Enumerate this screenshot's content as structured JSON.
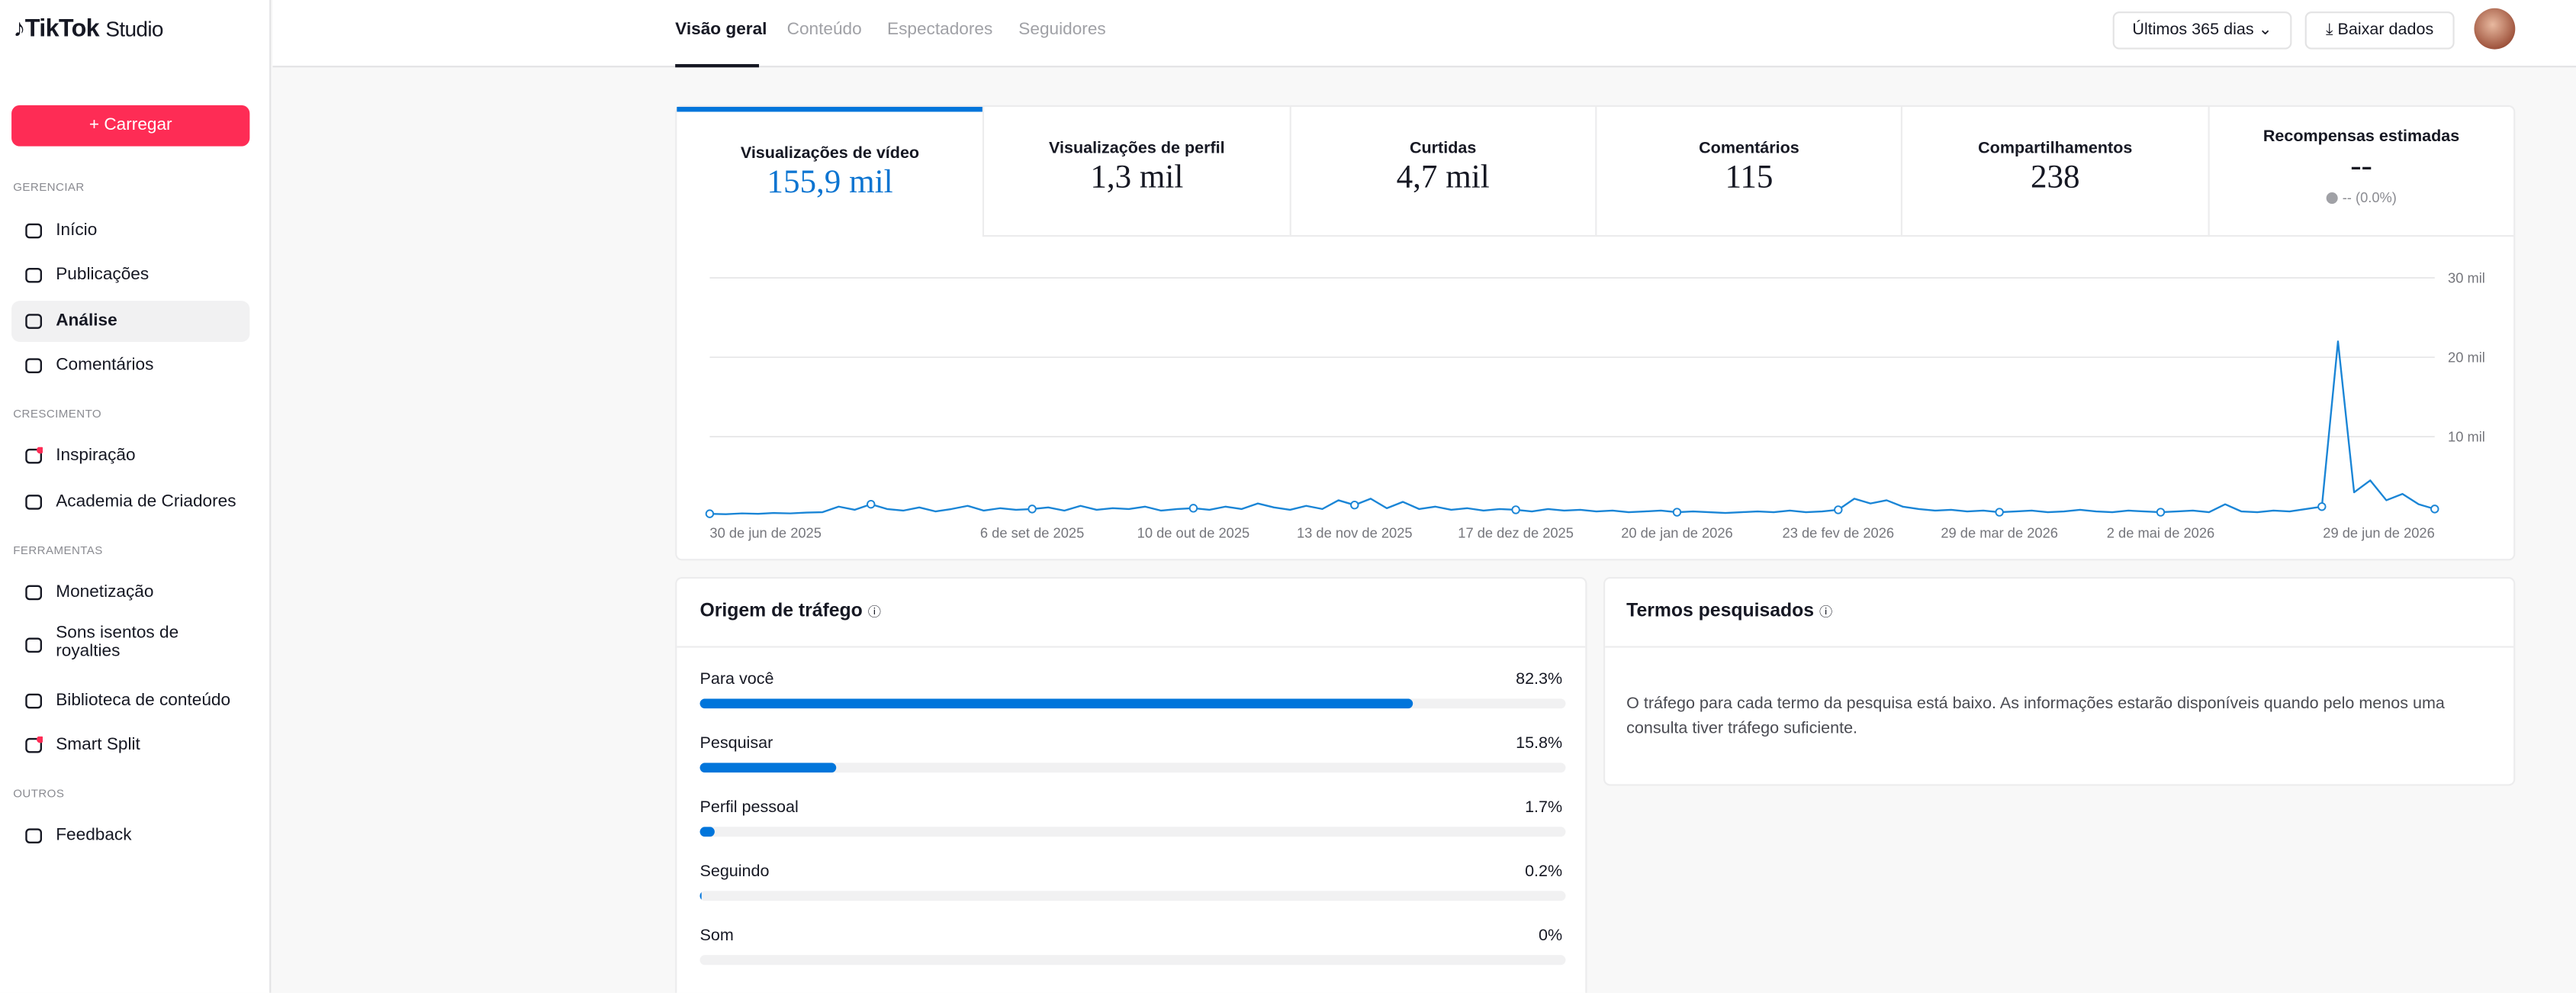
{
  "sidebar": {
    "logo": "TikTok",
    "logo_suffix": "Studio",
    "upload": "Carregar",
    "sections": [
      {
        "title": "GERENCIAR",
        "items": [
          "Início",
          "Publicações",
          "Análise",
          "Comentários"
        ]
      },
      {
        "title": "CRESCIMENTO",
        "items": [
          "Inspiração",
          "Academia de Criadores"
        ]
      },
      {
        "title": "FERRAMENTAS",
        "items": [
          "Monetização",
          "Sons isentos de royalties",
          "Biblioteca de conteúdo",
          "Smart Split"
        ]
      },
      {
        "title": "OUTROS",
        "items": [
          "Feedback"
        ]
      }
    ]
  },
  "tabs": [
    "Visão geral",
    "Conteúdo",
    "Espectadores",
    "Seguidores"
  ],
  "date_range": "Últimos 365 dias",
  "download": "Baixar dados",
  "metrics": [
    {
      "label": "Visualizações de vídeo",
      "value": "155,9 mil"
    },
    {
      "label": "Visualizações de perfil",
      "value": "1,3 mil"
    },
    {
      "label": "Curtidas",
      "value": "4,7 mil"
    },
    {
      "label": "Comentários",
      "value": "115"
    },
    {
      "label": "Compartilhamentos",
      "value": "238"
    },
    {
      "label": "Recompensas estimadas",
      "value": "--",
      "change": "-- (0.0%)"
    }
  ],
  "chart_data": {
    "type": "line",
    "color": "#1a85d6",
    "grid": true,
    "categories": [
      "30 de jun de 2025",
      null,
      null,
      null,
      null,
      null,
      null,
      null,
      null,
      null,
      null,
      null,
      null,
      null,
      null,
      null,
      null,
      null,
      null,
      null,
      "6 de set de 2025",
      null,
      null,
      null,
      null,
      null,
      null,
      null,
      null,
      null,
      "10 de out de 2025",
      null,
      null,
      null,
      null,
      null,
      null,
      null,
      null,
      null,
      "13 de nov de 2025",
      null,
      null,
      null,
      null,
      null,
      null,
      null,
      null,
      null,
      "17 de dez de 2025",
      null,
      null,
      null,
      null,
      null,
      null,
      null,
      null,
      null,
      "20 de jan de 2026",
      null,
      null,
      null,
      null,
      null,
      null,
      null,
      null,
      null,
      "23 de fev de 2026",
      null,
      null,
      null,
      null,
      null,
      null,
      null,
      null,
      null,
      "29 de mar de 2026",
      null,
      null,
      null,
      null,
      null,
      null,
      null,
      null,
      null,
      "2 de mai de 2026",
      null,
      null,
      null,
      null,
      null,
      null,
      null,
      null,
      null,
      null,
      null,
      null,
      null,
      null,
      null,
      null,
      "29 de jun de 2026"
    ],
    "values": [
      300,
      250,
      350,
      300,
      400,
      350,
      450,
      500,
      1200,
      800,
      1500,
      900,
      700,
      1100,
      600,
      900,
      1300,
      700,
      1000,
      800,
      900,
      1100,
      700,
      1300,
      800,
      1000,
      900,
      1200,
      700,
      900,
      1000,
      800,
      1200,
      900,
      1600,
      1100,
      800,
      1300,
      900,
      2000,
      1400,
      2200,
      1000,
      1800,
      900,
      1200,
      800,
      1000,
      700,
      900,
      800,
      600,
      900,
      700,
      800,
      600,
      700,
      500,
      600,
      700,
      500,
      600,
      500,
      400,
      500,
      600,
      500,
      700,
      500,
      600,
      800,
      2200,
      1600,
      2000,
      1200,
      900,
      700,
      800,
      600,
      700,
      500,
      600,
      700,
      500,
      600,
      800,
      600,
      500,
      700,
      600,
      500,
      600,
      700,
      500,
      1500,
      600,
      500,
      700,
      600,
      900,
      1200,
      22000,
      3000,
      4500,
      2000,
      2800,
      1500,
      900
    ],
    "ylim": [
      0,
      30000
    ],
    "yticks": [
      {
        "value": 10000,
        "label": "10 mil"
      },
      {
        "value": 20000,
        "label": "20 mil"
      },
      {
        "value": 30000,
        "label": "30 mil"
      }
    ]
  },
  "traffic_source": {
    "title": "Origem de tráfego",
    "rows": [
      {
        "name": "Para você",
        "value": 82.3,
        "value_label": "82.3%"
      },
      {
        "name": "Pesquisar",
        "value": 15.8,
        "value_label": "15.8%"
      },
      {
        "name": "Perfil pessoal",
        "value": 1.7,
        "value_label": "1.7%"
      },
      {
        "name": "Seguindo",
        "value": 0.2,
        "value_label": "0.2%"
      },
      {
        "name": "Som",
        "value": 0,
        "value_label": "0%"
      }
    ]
  },
  "search_terms": {
    "title": "Termos pesquisados",
    "message": "O tráfego para cada termo da pesquisa está baixo. As informações estarão disponíveis quando pelo menos uma consulta tiver tráfego suficiente."
  }
}
